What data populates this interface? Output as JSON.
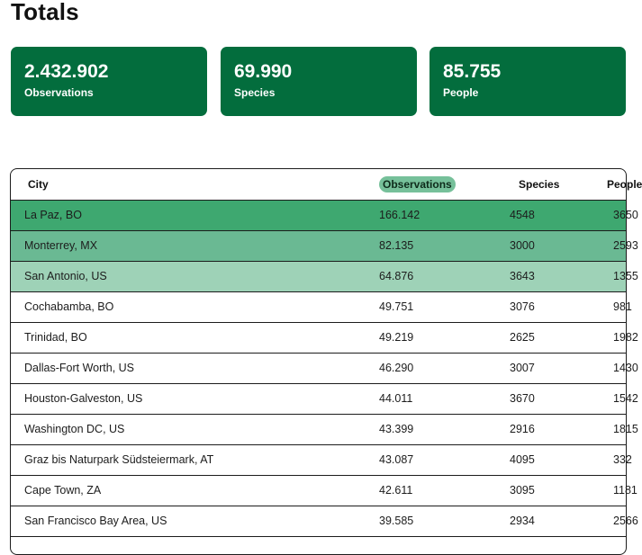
{
  "title": "Totals",
  "stats": [
    {
      "value": "2.432.902",
      "label": "Observations"
    },
    {
      "value": "69.990",
      "label": "Species"
    },
    {
      "value": "85.755",
      "label": "People"
    }
  ],
  "table": {
    "headers": {
      "city": "City",
      "observations": "Observations",
      "species": "Species",
      "people": "People"
    },
    "sorted_by": "Observations",
    "highlight_colors": [
      "#3ea870",
      "#6ab993",
      "#9ed2b7"
    ],
    "accent_color": "#036d3d",
    "rows": [
      {
        "city": "La Paz, BO",
        "observations": "166.142",
        "species": "4548",
        "people": "3650"
      },
      {
        "city": "Monterrey, MX",
        "observations": "82.135",
        "species": "3000",
        "people": "2593"
      },
      {
        "city": "San Antonio, US",
        "observations": "64.876",
        "species": "3643",
        "people": "1355"
      },
      {
        "city": "Cochabamba, BO",
        "observations": "49.751",
        "species": "3076",
        "people": "981"
      },
      {
        "city": "Trinidad, BO",
        "observations": "49.219",
        "species": "2625",
        "people": "1982"
      },
      {
        "city": "Dallas-Fort Worth, US",
        "observations": "46.290",
        "species": "3007",
        "people": "1430"
      },
      {
        "city": "Houston-Galveston, US",
        "observations": "44.011",
        "species": "3670",
        "people": "1542"
      },
      {
        "city": "Washington DC, US",
        "observations": "43.399",
        "species": "2916",
        "people": "1815"
      },
      {
        "city": "Graz bis Naturpark Südsteiermark, AT",
        "observations": "43.087",
        "species": "4095",
        "people": "332"
      },
      {
        "city": "Cape Town, ZA",
        "observations": "42.611",
        "species": "3095",
        "people": "1181"
      },
      {
        "city": "San Francisco Bay Area, US",
        "observations": "39.585",
        "species": "2934",
        "people": "2566"
      }
    ]
  }
}
